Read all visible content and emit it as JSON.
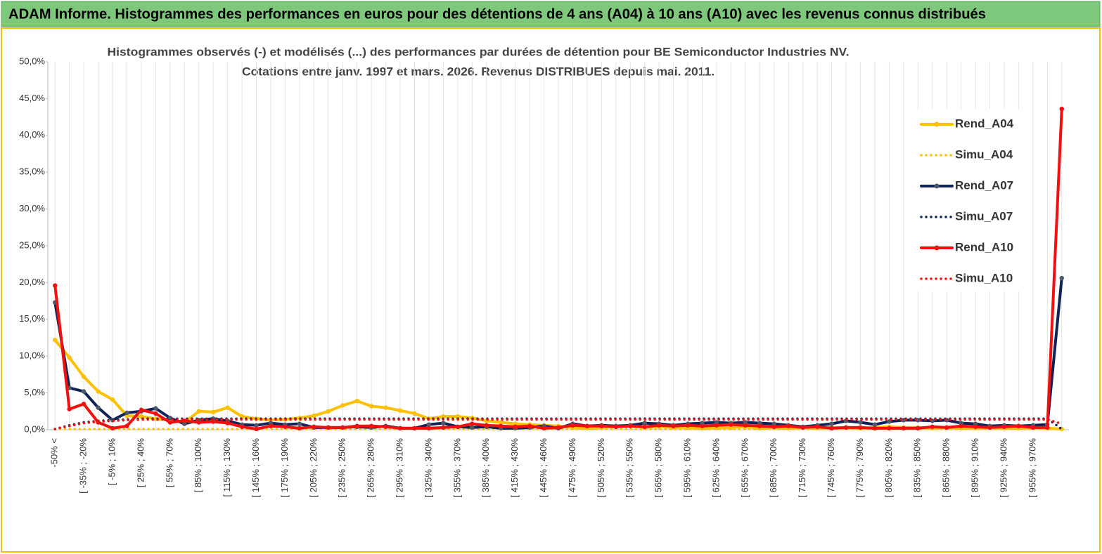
{
  "chart_data": {
    "type": "line",
    "header": "ADAM Informe. Histogrammes des performances en euros pour des détentions de 4 ans (A04) à 10 ans (A10) avec les revenus connus distribués",
    "title": "Histogrammes observés (-)  et modélisés (...) des performances par durées de détention pour BE Semiconductor Industries NV.",
    "subtitle": "Cotations entre janv. 1997 et mars. 2026. Revenus DISTRIBUES depuis mai. 2011.",
    "categories": [
      "-50% <",
      null,
      "[ -35% ; -20%",
      null,
      "[ -5% ; 10%",
      null,
      "[ 25% ; 40%",
      null,
      "[ 55% ; 70%",
      null,
      "[ 85% ; 100%",
      null,
      "[ 115% ; 130%",
      null,
      "[ 145% ; 160%",
      null,
      "[ 175% ; 190%",
      null,
      "[ 205% ; 220%",
      null,
      "[ 235% ; 250%",
      null,
      "[ 265% ; 280%",
      null,
      "[ 295% ; 310%",
      null,
      "[ 325% ; 340%",
      null,
      "[ 355% ; 370%",
      null,
      "[ 385% ; 400%",
      null,
      "[ 415% ; 430%",
      null,
      "[ 445% ; 460%",
      null,
      "[ 475% ; 490%",
      null,
      "[ 505% ; 520%",
      null,
      "[ 535% ; 550%",
      null,
      "[ 565% ; 580%",
      null,
      "[ 595% ; 610%",
      null,
      "[ 625% ; 640%",
      null,
      "[ 655% ; 670%",
      null,
      "[ 685% ; 700%",
      null,
      "[ 715% ; 730%",
      null,
      "[ 745% ; 760%",
      null,
      "[ 775% ; 790%",
      null,
      "[ 805% ; 820%",
      null,
      "[ 835% ; 850%",
      null,
      "[ 865% ; 880%",
      null,
      "[ 895% ; 910%",
      null,
      "[ 925% ; 940%",
      null,
      "[ 955% ; 970%",
      null,
      null
    ],
    "series": [
      {
        "name": "Rend_A04",
        "color": "#ffc000",
        "style": "solid",
        "values": [
          12.2,
          9.8,
          7.2,
          5.2,
          4.1,
          1.9,
          1.8,
          1.5,
          1.3,
          1.0,
          2.5,
          2.4,
          3.0,
          1.8,
          1.5,
          1.3,
          1.4,
          1.6,
          1.9,
          2.5,
          3.3,
          3.9,
          3.2,
          3.0,
          2.6,
          2.2,
          1.5,
          1.8,
          1.8,
          1.6,
          1.2,
          1.0,
          0.8,
          0.7,
          0.6,
          0.5,
          0.3,
          0.2,
          0.3,
          0.4,
          0.5,
          0.3,
          0.4,
          0.3,
          0.3,
          0.2,
          0.3,
          0.3,
          0.4,
          0.2,
          0.3,
          0.2,
          0.3,
          0.2,
          0.3,
          0.3,
          0.2,
          0.3,
          0.4,
          0.3,
          0.3,
          0.2,
          0.3,
          0.2,
          0.2,
          0.3,
          0.2,
          0.2,
          0.3,
          0.2,
          0.1
        ]
      },
      {
        "name": "Simu_A04",
        "color": "#ffc000",
        "style": "dotted",
        "values": [
          0.1,
          0.1,
          0.1,
          0.1,
          0.1,
          0.1,
          0.1,
          0.1,
          0.1,
          0.1,
          0.1,
          0.1,
          0.1,
          0.1,
          0.1,
          0.1,
          0.1,
          0.1,
          0.1,
          0.1,
          0.1,
          0.1,
          0.1,
          0.1,
          0.1,
          0.1,
          0.1,
          0.1,
          0.1,
          0.1,
          0.1,
          0.1,
          0.1,
          0.1,
          0.1,
          0.1,
          0.1,
          0.1,
          0.1,
          0.1,
          0.1,
          0.1,
          0.1,
          0.1,
          0.1,
          0.1,
          0.1,
          0.1,
          0.1,
          0.1,
          0.1,
          0.1,
          0.1,
          0.1,
          0.1,
          0.1,
          0.1,
          0.1,
          0.1,
          0.1,
          0.1,
          0.1,
          0.1,
          0.1,
          0.1,
          0.1,
          0.1,
          0.1,
          0.1,
          0.1,
          0.1
        ]
      },
      {
        "name": "Rend_A07",
        "color": "#0f2357",
        "style": "solid",
        "values": [
          17.3,
          5.7,
          5.2,
          3.0,
          1.3,
          2.3,
          2.5,
          2.9,
          1.6,
          0.8,
          1.3,
          1.5,
          1.2,
          0.7,
          0.6,
          0.9,
          0.7,
          0.8,
          0.3,
          0.3,
          0.3,
          0.4,
          0.3,
          0.5,
          0.2,
          0.2,
          0.7,
          0.9,
          0.4,
          0.3,
          0.4,
          0.2,
          0.2,
          0.3,
          0.5,
          0.2,
          0.8,
          0.5,
          0.6,
          0.5,
          0.6,
          0.9,
          0.8,
          0.6,
          0.8,
          0.9,
          1.0,
          0.9,
          1.0,
          0.9,
          0.8,
          0.6,
          0.4,
          0.6,
          0.8,
          1.2,
          1.0,
          0.7,
          1.1,
          1.3,
          1.3,
          1.2,
          1.3,
          0.9,
          0.8,
          0.5,
          0.6,
          0.5,
          0.6,
          0.7,
          20.6
        ]
      },
      {
        "name": "Simu_A07",
        "color": "#0f2357",
        "style": "dotted",
        "values": [
          0.1,
          0.6,
          1.0,
          1.2,
          1.3,
          1.4,
          1.5,
          1.5,
          1.5,
          1.5,
          1.5,
          1.5,
          1.5,
          1.5,
          1.5,
          1.5,
          1.5,
          1.5,
          1.5,
          1.5,
          1.5,
          1.5,
          1.5,
          1.5,
          1.5,
          1.5,
          1.5,
          1.5,
          1.5,
          1.5,
          1.5,
          1.5,
          1.5,
          1.5,
          1.5,
          1.5,
          1.5,
          1.5,
          1.5,
          1.5,
          1.5,
          1.5,
          1.5,
          1.5,
          1.5,
          1.5,
          1.5,
          1.5,
          1.5,
          1.5,
          1.5,
          1.5,
          1.5,
          1.5,
          1.5,
          1.5,
          1.5,
          1.5,
          1.5,
          1.5,
          1.5,
          1.5,
          1.5,
          1.5,
          1.5,
          1.5,
          1.5,
          1.5,
          1.5,
          1.5,
          0.1
        ]
      },
      {
        "name": "Rend_A10",
        "color": "#f01010",
        "style": "solid",
        "values": [
          19.6,
          2.8,
          3.5,
          1.0,
          0.2,
          0.5,
          2.7,
          2.2,
          1.0,
          1.2,
          1.0,
          1.1,
          0.9,
          0.4,
          0.1,
          0.5,
          0.4,
          0.2,
          0.4,
          0.3,
          0.3,
          0.5,
          0.5,
          0.4,
          0.2,
          0.2,
          0.2,
          0.3,
          0.4,
          0.8,
          0.6,
          0.5,
          0.4,
          0.5,
          0.2,
          0.3,
          0.6,
          0.5,
          0.5,
          0.4,
          0.5,
          0.4,
          0.6,
          0.5,
          0.6,
          0.5,
          0.6,
          0.7,
          0.6,
          0.5,
          0.4,
          0.5,
          0.3,
          0.4,
          0.2,
          0.3,
          0.3,
          0.2,
          0.2,
          0.2,
          0.2,
          0.4,
          0.3,
          0.5,
          0.4,
          0.3,
          0.4,
          0.5,
          0.3,
          0.3,
          43.6
        ]
      },
      {
        "name": "Simu_A10",
        "color": "#f01010",
        "style": "dotted",
        "values": [
          0.1,
          0.5,
          0.9,
          1.1,
          1.2,
          1.3,
          1.4,
          1.4,
          1.4,
          1.4,
          1.4,
          1.4,
          1.4,
          1.4,
          1.4,
          1.4,
          1.4,
          1.4,
          1.4,
          1.4,
          1.4,
          1.4,
          1.4,
          1.4,
          1.4,
          1.4,
          1.4,
          1.4,
          1.4,
          1.4,
          1.4,
          1.4,
          1.4,
          1.4,
          1.4,
          1.4,
          1.4,
          1.4,
          1.4,
          1.4,
          1.4,
          1.4,
          1.4,
          1.4,
          1.4,
          1.4,
          1.4,
          1.4,
          1.4,
          1.4,
          1.4,
          1.4,
          1.4,
          1.4,
          1.4,
          1.4,
          1.4,
          1.4,
          1.4,
          1.4,
          1.4,
          1.4,
          1.4,
          1.4,
          1.4,
          1.4,
          1.4,
          1.4,
          1.4,
          1.4,
          0.8
        ]
      }
    ],
    "ylim": [
      0,
      50
    ],
    "yticks": [
      {
        "value": 0,
        "label": "0,0%"
      },
      {
        "value": 5,
        "label": "5,0%"
      },
      {
        "value": 10,
        "label": "10,0%"
      },
      {
        "value": 15,
        "label": "15,0%"
      },
      {
        "value": 20,
        "label": "20,0%"
      },
      {
        "value": 25,
        "label": "25,0%"
      },
      {
        "value": 30,
        "label": "30,0%"
      },
      {
        "value": 35,
        "label": "35,0%"
      },
      {
        "value": 40,
        "label": "40,0%"
      },
      {
        "value": 45,
        "label": "45,0%"
      },
      {
        "value": 50,
        "label": "50,0%"
      }
    ],
    "grid": "x",
    "legend": "right"
  }
}
